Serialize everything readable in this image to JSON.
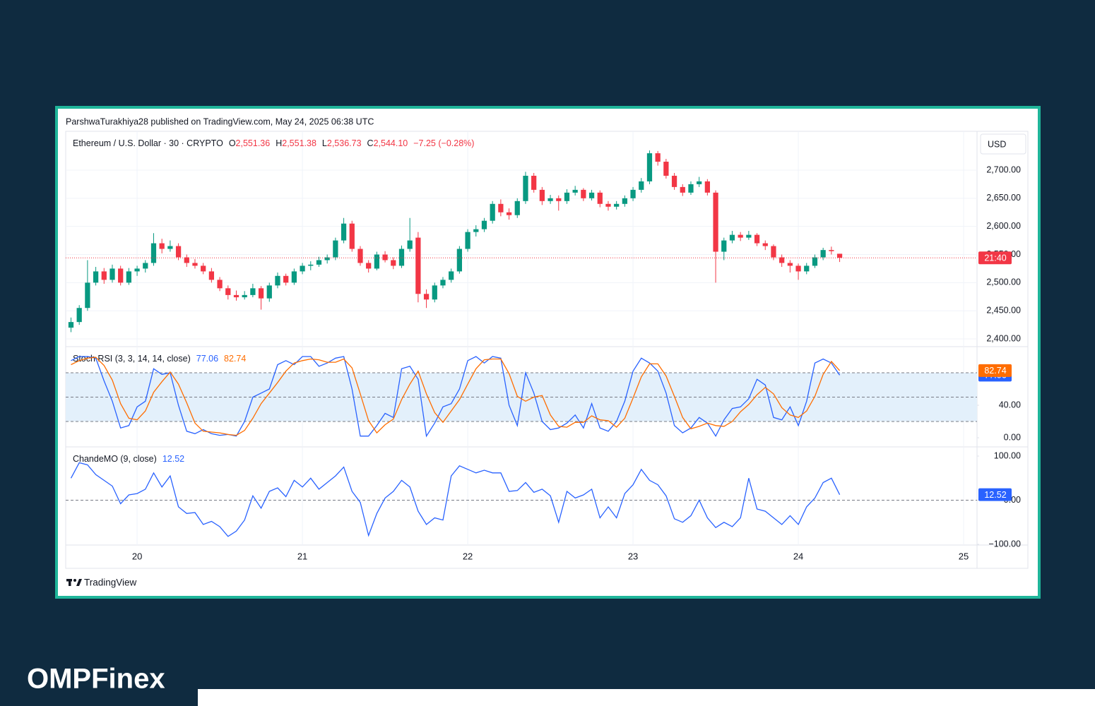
{
  "publisher": "ParshwaTurakhiya28 published on TradingView.com, May 24, 2025 06:38 UTC",
  "currency_button": "USD",
  "logo": "TradingView",
  "brand": "OMPFinex",
  "chart_data": [
    {
      "type": "candlestick",
      "title": "Ethereum / U.S. Dollar · 30 · CRYPTO",
      "ohlc_labels": [
        {
          "key": "O",
          "text": "2,551.36"
        },
        {
          "key": "H",
          "text": "2,551.38"
        },
        {
          "key": "L",
          "text": "2,536.73"
        },
        {
          "key": "C",
          "text": "2,544.10"
        }
      ],
      "change": "−7.25 (−0.28%)",
      "badge_text": "21:40",
      "up_color": "#089981",
      "down_color": "#f23645",
      "grid": true,
      "price_line": true,
      "x": [
        19.6,
        19.65,
        19.7,
        19.75,
        19.8,
        19.85,
        19.9,
        19.95,
        20,
        20.05,
        20.1,
        20.15,
        20.2,
        20.25,
        20.3,
        20.35,
        20.4,
        20.45,
        20.5,
        20.55,
        20.6,
        20.65,
        20.7,
        20.75,
        20.8,
        20.85,
        20.9,
        20.95,
        21,
        21.05,
        21.1,
        21.15,
        21.2,
        21.25,
        21.3,
        21.35,
        21.4,
        21.45,
        21.5,
        21.55,
        21.6,
        21.65,
        21.7,
        21.75,
        21.8,
        21.85,
        21.9,
        21.95,
        22,
        22.05,
        22.1,
        22.15,
        22.2,
        22.25,
        22.3,
        22.35,
        22.4,
        22.45,
        22.5,
        22.55,
        22.6,
        22.65,
        22.7,
        22.75,
        22.8,
        22.85,
        22.9,
        22.95,
        23,
        23.05,
        23.1,
        23.15,
        23.2,
        23.25,
        23.3,
        23.35,
        23.4,
        23.45,
        23.5,
        23.55,
        23.6,
        23.65,
        23.7,
        23.75,
        23.8,
        23.85,
        23.9,
        23.95,
        24,
        24.05,
        24.1,
        24.15,
        24.2,
        24.25
      ],
      "xlim": [
        19.568,
        25.081
      ],
      "xticks": [
        20,
        21,
        22,
        23,
        24,
        25
      ],
      "candles": [
        [
          2420,
          2438,
          2412,
          2430
        ],
        [
          2430,
          2460,
          2425,
          2455
        ],
        [
          2455,
          2540,
          2450,
          2500
        ],
        [
          2500,
          2528,
          2495,
          2520
        ],
        [
          2520,
          2526,
          2498,
          2505
        ],
        [
          2505,
          2532,
          2500,
          2525
        ],
        [
          2525,
          2530,
          2495,
          2500
        ],
        [
          2500,
          2526,
          2496,
          2520
        ],
        [
          2520,
          2530,
          2512,
          2525
        ],
        [
          2525,
          2540,
          2518,
          2535
        ],
        [
          2535,
          2588,
          2530,
          2570
        ],
        [
          2570,
          2578,
          2552,
          2560
        ],
        [
          2560,
          2575,
          2555,
          2565
        ],
        [
          2565,
          2570,
          2540,
          2545
        ],
        [
          2545,
          2550,
          2528,
          2535
        ],
        [
          2535,
          2542,
          2525,
          2530
        ],
        [
          2530,
          2535,
          2515,
          2520
        ],
        [
          2520,
          2526,
          2500,
          2505
        ],
        [
          2505,
          2510,
          2485,
          2490
        ],
        [
          2490,
          2495,
          2470,
          2478
        ],
        [
          2478,
          2486,
          2468,
          2474
        ],
        [
          2474,
          2485,
          2470,
          2478
        ],
        [
          2478,
          2498,
          2474,
          2490
        ],
        [
          2490,
          2494,
          2452,
          2472
        ],
        [
          2472,
          2500,
          2466,
          2495
        ],
        [
          2495,
          2518,
          2490,
          2512
        ],
        [
          2512,
          2516,
          2495,
          2500
        ],
        [
          2500,
          2525,
          2496,
          2520
        ],
        [
          2520,
          2535,
          2515,
          2530
        ],
        [
          2530,
          2538,
          2522,
          2532
        ],
        [
          2532,
          2546,
          2528,
          2540
        ],
        [
          2540,
          2550,
          2534,
          2545
        ],
        [
          2545,
          2580,
          2540,
          2575
        ],
        [
          2575,
          2615,
          2570,
          2605
        ],
        [
          2605,
          2610,
          2555,
          2560
        ],
        [
          2560,
          2565,
          2530,
          2535
        ],
        [
          2535,
          2540,
          2518,
          2525
        ],
        [
          2525,
          2555,
          2522,
          2550
        ],
        [
          2550,
          2556,
          2536,
          2540
        ],
        [
          2540,
          2545,
          2524,
          2530
        ],
        [
          2530,
          2566,
          2526,
          2560
        ],
        [
          2560,
          2615,
          2555,
          2575
        ],
        [
          2580,
          2590,
          2465,
          2480
        ],
        [
          2480,
          2488,
          2455,
          2470
        ],
        [
          2470,
          2500,
          2465,
          2495
        ],
        [
          2495,
          2510,
          2490,
          2505
        ],
        [
          2505,
          2525,
          2500,
          2520
        ],
        [
          2520,
          2565,
          2516,
          2560
        ],
        [
          2560,
          2595,
          2555,
          2590
        ],
        [
          2590,
          2602,
          2582,
          2595
        ],
        [
          2595,
          2615,
          2590,
          2610
        ],
        [
          2610,
          2645,
          2605,
          2640
        ],
        [
          2640,
          2648,
          2618,
          2625
        ],
        [
          2625,
          2632,
          2612,
          2620
        ],
        [
          2620,
          2650,
          2615,
          2645
        ],
        [
          2645,
          2697,
          2640,
          2690
        ],
        [
          2690,
          2695,
          2660,
          2665
        ],
        [
          2665,
          2670,
          2638,
          2645
        ],
        [
          2645,
          2656,
          2640,
          2650
        ],
        [
          2650,
          2655,
          2628,
          2645
        ],
        [
          2645,
          2666,
          2640,
          2660
        ],
        [
          2660,
          2672,
          2655,
          2665
        ],
        [
          2665,
          2668,
          2645,
          2650
        ],
        [
          2650,
          2665,
          2646,
          2660
        ],
        [
          2660,
          2664,
          2634,
          2640
        ],
        [
          2640,
          2645,
          2628,
          2635
        ],
        [
          2635,
          2645,
          2630,
          2640
        ],
        [
          2640,
          2655,
          2635,
          2650
        ],
        [
          2650,
          2670,
          2645,
          2665
        ],
        [
          2665,
          2686,
          2660,
          2680
        ],
        [
          2680,
          2735,
          2675,
          2730
        ],
        [
          2730,
          2734,
          2708,
          2715
        ],
        [
          2715,
          2720,
          2685,
          2690
        ],
        [
          2690,
          2695,
          2665,
          2670
        ],
        [
          2670,
          2675,
          2654,
          2660
        ],
        [
          2660,
          2680,
          2656,
          2675
        ],
        [
          2675,
          2688,
          2670,
          2680
        ],
        [
          2680,
          2684,
          2655,
          2660
        ],
        [
          2660,
          2664,
          2500,
          2555
        ],
        [
          2555,
          2580,
          2540,
          2575
        ],
        [
          2575,
          2592,
          2570,
          2585
        ],
        [
          2585,
          2590,
          2574,
          2580
        ],
        [
          2580,
          2592,
          2576,
          2585
        ],
        [
          2585,
          2588,
          2565,
          2570
        ],
        [
          2570,
          2575,
          2558,
          2565
        ],
        [
          2565,
          2568,
          2540,
          2545
        ],
        [
          2545,
          2550,
          2528,
          2535
        ],
        [
          2535,
          2540,
          2518,
          2530
        ],
        [
          2530,
          2534,
          2505,
          2520
        ],
        [
          2520,
          2535,
          2515,
          2530
        ],
        [
          2530,
          2550,
          2526,
          2545
        ],
        [
          2545,
          2562,
          2540,
          2558
        ],
        [
          2558,
          2564,
          2550,
          2556
        ],
        [
          2551.36,
          2551.38,
          2536.73,
          2544.1
        ]
      ],
      "ylim": [
        2387.5,
        2769
      ],
      "yticks": [
        {
          "value": 2400,
          "label": "2,400.00"
        },
        {
          "value": 2450,
          "label": "2,450.00"
        },
        {
          "value": 2500,
          "label": "2,500.00"
        },
        {
          "value": 2550,
          "label": "2,550.00"
        },
        {
          "value": 2600,
          "label": "2,600.00"
        },
        {
          "value": 2650,
          "label": "2,650.00"
        },
        {
          "value": 2700,
          "label": "2,700.00"
        }
      ]
    },
    {
      "type": "line",
      "title": "Stoch RSI (3, 3, 14, 14, close)",
      "grid": false,
      "bands": [
        20,
        50,
        80
      ],
      "band_fill": "#e3f0fb",
      "ylim": [
        -10.4,
        111.3
      ],
      "yticks": [
        {
          "value": 0,
          "label": "0.00"
        },
        {
          "value": 40,
          "label": "40.00"
        }
      ],
      "series": [
        {
          "name": "K",
          "color": "#2962ff",
          "values": [
            95,
            100,
            100,
            98,
            70,
            45,
            12,
            15,
            38,
            45,
            85,
            78,
            80,
            40,
            8,
            5,
            10,
            5,
            3,
            4,
            2,
            20,
            50,
            55,
            60,
            90,
            95,
            90,
            100,
            100,
            88,
            92,
            98,
            100,
            60,
            2,
            2,
            15,
            30,
            25,
            85,
            88,
            72,
            2,
            18,
            38,
            42,
            60,
            95,
            100,
            92,
            100,
            98,
            40,
            15,
            80,
            55,
            20,
            10,
            12,
            18,
            28,
            12,
            42,
            12,
            8,
            20,
            45,
            82,
            98,
            92,
            82,
            55,
            15,
            6,
            12,
            25,
            18,
            2,
            22,
            36,
            38,
            48,
            72,
            65,
            25,
            22,
            38,
            15,
            45,
            92,
            97,
            92,
            77.06
          ]
        },
        {
          "name": "D",
          "color": "#ff6d00",
          "values": [
            90,
            95,
            98,
            99,
            89,
            71,
            42,
            24,
            22,
            33,
            56,
            69,
            81,
            66,
            43,
            18,
            8,
            7,
            6,
            4,
            3,
            9,
            24,
            42,
            55,
            68,
            82,
            92,
            95,
            97,
            96,
            93,
            93,
            97,
            86,
            54,
            21,
            6,
            16,
            23,
            47,
            66,
            82,
            54,
            31,
            19,
            33,
            47,
            66,
            85,
            96,
            97,
            97,
            79,
            51,
            45,
            50,
            52,
            28,
            14,
            13,
            19,
            19,
            27,
            22,
            21,
            13,
            24,
            49,
            75,
            91,
            91,
            76,
            51,
            25,
            11,
            14,
            18,
            15,
            14,
            20,
            32,
            41,
            53,
            62,
            54,
            37,
            28,
            25,
            33,
            51,
            78,
            94,
            82.74
          ]
        }
      ]
    },
    {
      "type": "line",
      "title": "ChandeMO (9, close)",
      "grid": false,
      "bands": [
        0
      ],
      "ylim": [
        -101.6,
        119.2
      ],
      "yticks": [
        {
          "value": -100,
          "label": "−100.00"
        },
        {
          "value": 0,
          "label": "0.00"
        },
        {
          "value": 100,
          "label": "100.00"
        }
      ],
      "series": [
        {
          "name": "ChandeMO",
          "color": "#2962ff",
          "values": [
            50,
            85,
            80,
            58,
            45,
            32,
            -8,
            12,
            15,
            25,
            62,
            30,
            55,
            -15,
            -30,
            -28,
            -55,
            -48,
            -60,
            -82,
            -70,
            -45,
            10,
            -18,
            20,
            28,
            8,
            45,
            30,
            50,
            25,
            40,
            55,
            75,
            20,
            -5,
            -80,
            -30,
            5,
            20,
            45,
            30,
            -25,
            -55,
            -40,
            -45,
            55,
            78,
            70,
            62,
            68,
            62,
            62,
            20,
            22,
            40,
            18,
            25,
            10,
            -50,
            20,
            5,
            12,
            25,
            -40,
            -15,
            -40,
            15,
            35,
            70,
            45,
            35,
            10,
            -42,
            -50,
            -35,
            0,
            -40,
            -62,
            -50,
            -60,
            -40,
            50,
            -20,
            -25,
            -40,
            -55,
            -35,
            -55,
            -15,
            5,
            40,
            50,
            12.52
          ]
        }
      ]
    }
  ]
}
